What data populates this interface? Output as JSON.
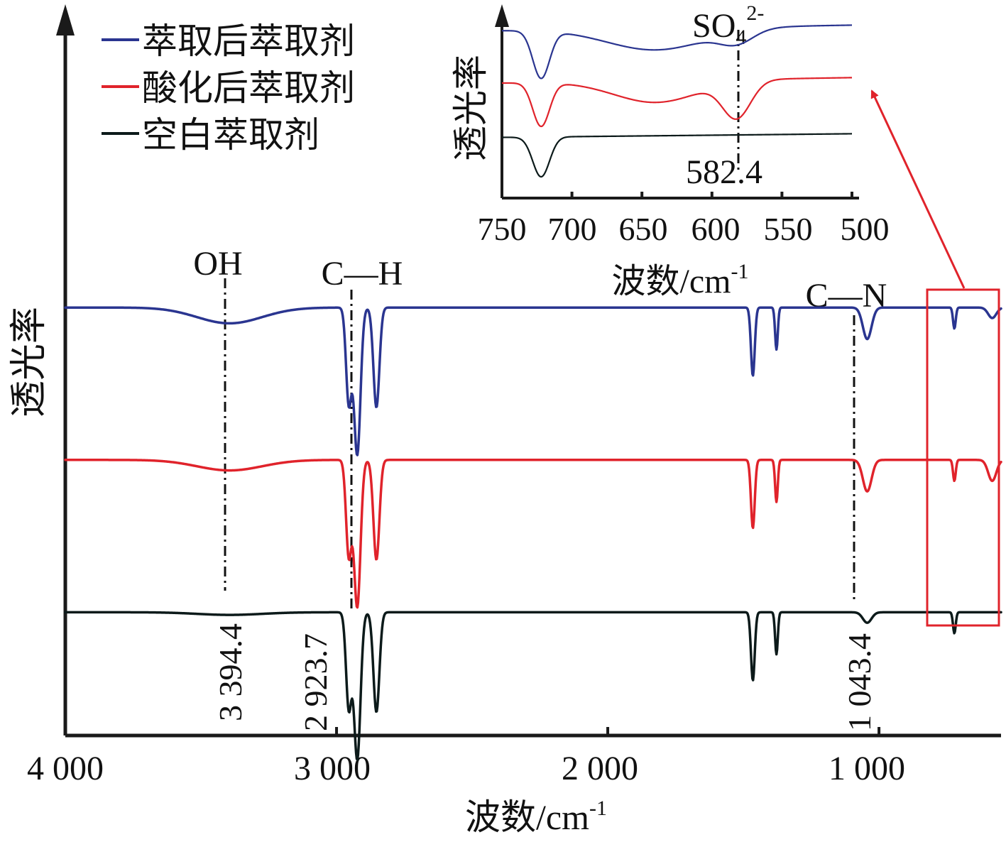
{
  "chart_data": [
    {
      "type": "line",
      "title": "",
      "xlabel": "波数/cm-1",
      "xlabel_main": "波数/cm",
      "xlabel_exp": "-1",
      "ylabel": "透光率",
      "xlim": [
        4000,
        550
      ],
      "x_reversed": true,
      "y_ticks_shown": false,
      "x_ticks": [
        4000,
        3000,
        2000,
        1000
      ],
      "x_tick_labels": [
        "4 000",
        "3 000",
        "2 000",
        "1 000"
      ],
      "legend_position": "top-left",
      "series": [
        {
          "name": "萃取后萃取剂",
          "color": "#2a3590",
          "baseline": 0.82,
          "features": [
            {
              "center": 3394.4,
              "depth": 0.03,
              "width": 120
            },
            {
              "center": 2955,
              "depth": 0.18,
              "width": 10
            },
            {
              "center": 2923.7,
              "depth": 0.28,
              "width": 12
            },
            {
              "center": 2853,
              "depth": 0.19,
              "width": 11
            },
            {
              "center": 1465,
              "depth": 0.13,
              "width": 7
            },
            {
              "center": 1378,
              "depth": 0.08,
              "width": 5
            },
            {
              "center": 1043.4,
              "depth": 0.06,
              "width": 16
            },
            {
              "center": 722,
              "depth": 0.04,
              "width": 5
            },
            {
              "center": 582.4,
              "depth": 0.02,
              "width": 15
            }
          ]
        },
        {
          "name": "酸化后萃取剂",
          "color": "#e0232b",
          "baseline": 0.53,
          "features": [
            {
              "center": 3394.4,
              "depth": 0.02,
              "width": 120
            },
            {
              "center": 2955,
              "depth": 0.18,
              "width": 10
            },
            {
              "center": 2923.7,
              "depth": 0.28,
              "width": 12
            },
            {
              "center": 2853,
              "depth": 0.19,
              "width": 11
            },
            {
              "center": 1465,
              "depth": 0.13,
              "width": 7
            },
            {
              "center": 1378,
              "depth": 0.08,
              "width": 5
            },
            {
              "center": 1043.4,
              "depth": 0.06,
              "width": 16
            },
            {
              "center": 722,
              "depth": 0.04,
              "width": 5
            },
            {
              "center": 582.4,
              "depth": 0.04,
              "width": 15
            }
          ]
        },
        {
          "name": "空白萃取剂",
          "color": "#0c1a1a",
          "baseline": 0.24,
          "features": [
            {
              "center": 3394.4,
              "depth": 0.005,
              "width": 120
            },
            {
              "center": 2955,
              "depth": 0.18,
              "width": 10
            },
            {
              "center": 2923.7,
              "depth": 0.28,
              "width": 12
            },
            {
              "center": 2853,
              "depth": 0.19,
              "width": 11
            },
            {
              "center": 1465,
              "depth": 0.13,
              "width": 7
            },
            {
              "center": 1378,
              "depth": 0.08,
              "width": 5
            },
            {
              "center": 1043.4,
              "depth": 0.02,
              "width": 16
            },
            {
              "center": 722,
              "depth": 0.04,
              "width": 5
            }
          ]
        }
      ],
      "annotations": [
        {
          "label": "OH",
          "wavenumber": 3394.4,
          "value_label": "3 394.4"
        },
        {
          "label": "C—H",
          "wavenumber": 2923.7,
          "value_label": "2 923.7"
        },
        {
          "label": "C—N",
          "wavenumber": 1043.4,
          "value_label": "1 043.4"
        }
      ],
      "highlight_region": {
        "from": 740,
        "to": 550,
        "color": "#e0232b"
      }
    },
    {
      "type": "line",
      "title": "",
      "xlabel": "波数/cm-1",
      "xlabel_main": "波数/cm",
      "xlabel_exp": "-1",
      "ylabel": "透光率",
      "xlim": [
        750,
        500
      ],
      "x_reversed": true,
      "x_ticks": [
        750,
        700,
        650,
        600,
        550,
        500
      ],
      "x_tick_labels": [
        "750",
        "700",
        "650",
        "600",
        "550",
        "500"
      ],
      "series": [
        {
          "name": "萃取后萃取剂",
          "color": "#2a3590",
          "baseline": 0.89,
          "slope": 0.03,
          "features": [
            {
              "center": 722,
              "depth": 0.26,
              "width": 6
            },
            {
              "center": 640,
              "depth": 0.12,
              "width": 35
            },
            {
              "center": 582.4,
              "depth": 0.07,
              "width": 12
            }
          ]
        },
        {
          "name": "酸化后萃取剂",
          "color": "#e0232b",
          "baseline": 0.6,
          "slope": 0.03,
          "features": [
            {
              "center": 722,
              "depth": 0.24,
              "width": 6
            },
            {
              "center": 640,
              "depth": 0.12,
              "width": 30
            },
            {
              "center": 582.4,
              "depth": 0.2,
              "width": 10
            }
          ]
        },
        {
          "name": "空白萃取剂",
          "color": "#0c1a1a",
          "baseline": 0.3,
          "slope": 0.02,
          "features": [
            {
              "center": 722,
              "depth": 0.22,
              "width": 6
            }
          ]
        }
      ],
      "annotations": [
        {
          "label_main": "SO",
          "label_sub": "4",
          "label_sup": "2-",
          "wavenumber": 582.4,
          "value_label": "582.4"
        }
      ]
    }
  ]
}
